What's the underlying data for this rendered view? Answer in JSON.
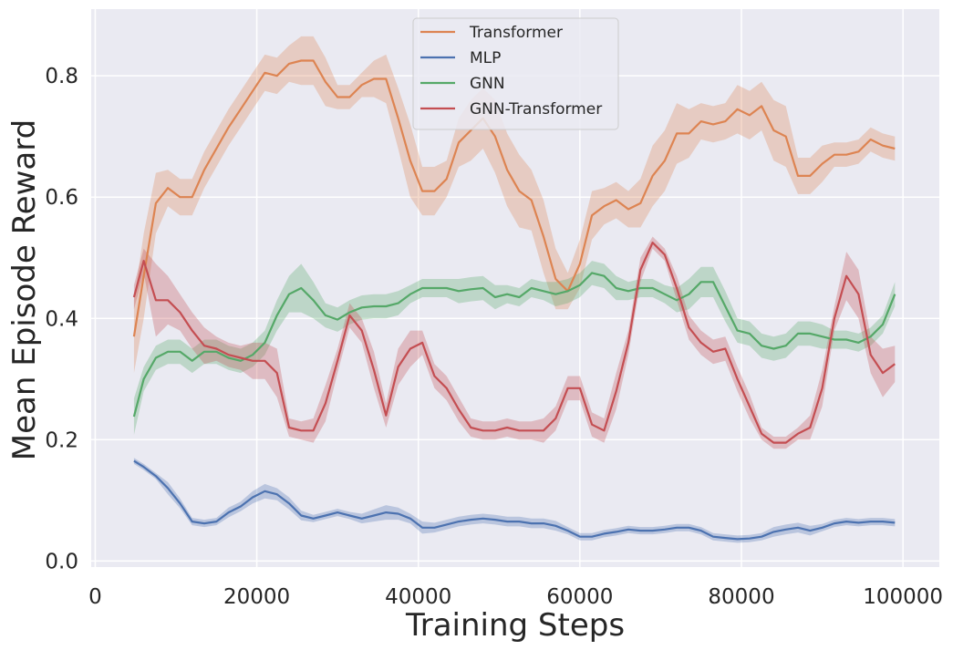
{
  "chart_data": {
    "type": "line",
    "title": "",
    "xlabel": "Training Steps",
    "ylabel": "Mean Episode Reward",
    "xlim": [
      -500,
      104500
    ],
    "ylim": [
      -0.01,
      0.91
    ],
    "xticks": [
      0,
      20000,
      40000,
      60000,
      80000,
      100000
    ],
    "xtick_labels": [
      "0",
      "20000",
      "40000",
      "60000",
      "80000",
      "100000"
    ],
    "yticks": [
      0.0,
      0.2,
      0.4,
      0.6,
      0.8
    ],
    "ytick_labels": [
      "0.0",
      "0.2",
      "0.4",
      "0.6",
      "0.8"
    ],
    "grid": true,
    "background": "#eaeaf2",
    "legend_position": "top-center",
    "shaded_band": "variability range around each series",
    "series": [
      {
        "name": "Transformer",
        "color": "#dd8452",
        "x": [
          4800,
          6000,
          7500,
          9000,
          10500,
          12000,
          13500,
          15000,
          16500,
          18000,
          19500,
          21000,
          22500,
          24000,
          25500,
          27000,
          28500,
          30000,
          31500,
          33000,
          34500,
          36000,
          37500,
          39000,
          40500,
          42000,
          43500,
          45000,
          46500,
          48000,
          49500,
          51000,
          52500,
          54000,
          55500,
          57000,
          58500,
          60000,
          61500,
          63000,
          64500,
          66000,
          67500,
          69000,
          70500,
          72000,
          73500,
          75000,
          76500,
          78000,
          79500,
          81000,
          82500,
          84000,
          85500,
          87000,
          88500,
          90000,
          91500,
          93000,
          94500,
          96000,
          97500,
          99000
        ],
        "y": [
          0.37,
          0.47,
          0.59,
          0.615,
          0.6,
          0.6,
          0.645,
          0.68,
          0.715,
          0.745,
          0.775,
          0.805,
          0.8,
          0.82,
          0.825,
          0.825,
          0.79,
          0.765,
          0.765,
          0.785,
          0.795,
          0.795,
          0.73,
          0.66,
          0.61,
          0.61,
          0.63,
          0.69,
          0.71,
          0.73,
          0.7,
          0.645,
          0.61,
          0.595,
          0.535,
          0.465,
          0.445,
          0.49,
          0.57,
          0.585,
          0.595,
          0.58,
          0.59,
          0.635,
          0.66,
          0.705,
          0.705,
          0.725,
          0.72,
          0.725,
          0.745,
          0.735,
          0.75,
          0.71,
          0.7,
          0.635,
          0.635,
          0.655,
          0.67,
          0.67,
          0.675,
          0.695,
          0.685,
          0.68
        ],
        "band": [
          0.06,
          0.07,
          0.05,
          0.03,
          0.03,
          0.03,
          0.03,
          0.03,
          0.03,
          0.03,
          0.03,
          0.03,
          0.03,
          0.03,
          0.04,
          0.04,
          0.04,
          0.02,
          0.02,
          0.02,
          0.03,
          0.04,
          0.05,
          0.06,
          0.04,
          0.04,
          0.03,
          0.04,
          0.05,
          0.05,
          0.06,
          0.06,
          0.06,
          0.05,
          0.06,
          0.05,
          0.03,
          0.04,
          0.04,
          0.03,
          0.03,
          0.03,
          0.04,
          0.05,
          0.05,
          0.05,
          0.04,
          0.03,
          0.03,
          0.03,
          0.04,
          0.04,
          0.04,
          0.05,
          0.05,
          0.03,
          0.03,
          0.03,
          0.02,
          0.02,
          0.02,
          0.02,
          0.02,
          0.02
        ]
      },
      {
        "name": "MLP",
        "color": "#4c72b0",
        "x": [
          4800,
          6000,
          7500,
          9000,
          10500,
          12000,
          13500,
          15000,
          16500,
          18000,
          19500,
          21000,
          22500,
          24000,
          25500,
          27000,
          28500,
          30000,
          31500,
          33000,
          34500,
          36000,
          37500,
          39000,
          40500,
          42000,
          43500,
          45000,
          46500,
          48000,
          49500,
          51000,
          52500,
          54000,
          55500,
          57000,
          58500,
          60000,
          61500,
          63000,
          64500,
          66000,
          67500,
          69000,
          70500,
          72000,
          73500,
          75000,
          76500,
          78000,
          79500,
          81000,
          82500,
          84000,
          85500,
          87000,
          88500,
          90000,
          91500,
          93000,
          94500,
          96000,
          97500,
          99000
        ],
        "y": [
          0.165,
          0.155,
          0.14,
          0.12,
          0.095,
          0.065,
          0.062,
          0.065,
          0.08,
          0.09,
          0.105,
          0.115,
          0.11,
          0.095,
          0.075,
          0.07,
          0.075,
          0.08,
          0.075,
          0.07,
          0.075,
          0.08,
          0.078,
          0.07,
          0.055,
          0.055,
          0.06,
          0.065,
          0.068,
          0.07,
          0.068,
          0.065,
          0.065,
          0.062,
          0.062,
          0.058,
          0.05,
          0.04,
          0.04,
          0.045,
          0.048,
          0.052,
          0.05,
          0.05,
          0.052,
          0.055,
          0.055,
          0.05,
          0.04,
          0.038,
          0.036,
          0.037,
          0.04,
          0.048,
          0.052,
          0.055,
          0.05,
          0.055,
          0.062,
          0.065,
          0.063,
          0.065,
          0.065,
          0.063
        ],
        "band": [
          0.005,
          0.005,
          0.005,
          0.01,
          0.008,
          0.006,
          0.006,
          0.006,
          0.008,
          0.008,
          0.01,
          0.012,
          0.01,
          0.01,
          0.008,
          0.006,
          0.006,
          0.006,
          0.006,
          0.008,
          0.01,
          0.012,
          0.01,
          0.008,
          0.01,
          0.008,
          0.008,
          0.008,
          0.008,
          0.008,
          0.008,
          0.008,
          0.008,
          0.008,
          0.008,
          0.008,
          0.006,
          0.006,
          0.006,
          0.006,
          0.006,
          0.006,
          0.006,
          0.006,
          0.006,
          0.006,
          0.006,
          0.006,
          0.006,
          0.006,
          0.006,
          0.006,
          0.006,
          0.008,
          0.008,
          0.008,
          0.008,
          0.006,
          0.006,
          0.006,
          0.006,
          0.006,
          0.006,
          0.006
        ]
      },
      {
        "name": "GNN",
        "color": "#55a868",
        "x": [
          4800,
          6000,
          7500,
          9000,
          10500,
          12000,
          13500,
          15000,
          16500,
          18000,
          19500,
          21000,
          22500,
          24000,
          25500,
          27000,
          28500,
          30000,
          31500,
          33000,
          34500,
          36000,
          37500,
          39000,
          40500,
          42000,
          43500,
          45000,
          46500,
          48000,
          49500,
          51000,
          52500,
          54000,
          55500,
          57000,
          58500,
          60000,
          61500,
          63000,
          64500,
          66000,
          67500,
          69000,
          70500,
          72000,
          73500,
          75000,
          76500,
          78000,
          79500,
          81000,
          82500,
          84000,
          85500,
          87000,
          88500,
          90000,
          91500,
          93000,
          94500,
          96000,
          97500,
          99000
        ],
        "y": [
          0.238,
          0.3,
          0.335,
          0.345,
          0.345,
          0.33,
          0.345,
          0.345,
          0.335,
          0.33,
          0.34,
          0.36,
          0.405,
          0.44,
          0.45,
          0.43,
          0.405,
          0.398,
          0.41,
          0.418,
          0.42,
          0.42,
          0.425,
          0.44,
          0.45,
          0.45,
          0.45,
          0.445,
          0.448,
          0.45,
          0.435,
          0.44,
          0.435,
          0.45,
          0.445,
          0.44,
          0.445,
          0.455,
          0.475,
          0.47,
          0.45,
          0.445,
          0.45,
          0.45,
          0.44,
          0.43,
          0.44,
          0.46,
          0.46,
          0.42,
          0.38,
          0.375,
          0.355,
          0.35,
          0.355,
          0.375,
          0.375,
          0.37,
          0.365,
          0.365,
          0.36,
          0.37,
          0.39,
          0.44
        ],
        "band": [
          0.03,
          0.02,
          0.02,
          0.02,
          0.02,
          0.02,
          0.02,
          0.02,
          0.02,
          0.02,
          0.02,
          0.02,
          0.025,
          0.03,
          0.04,
          0.03,
          0.02,
          0.02,
          0.02,
          0.02,
          0.02,
          0.02,
          0.02,
          0.015,
          0.015,
          0.015,
          0.015,
          0.02,
          0.02,
          0.02,
          0.02,
          0.015,
          0.015,
          0.015,
          0.015,
          0.02,
          0.02,
          0.02,
          0.02,
          0.02,
          0.02,
          0.015,
          0.015,
          0.015,
          0.015,
          0.02,
          0.025,
          0.025,
          0.025,
          0.025,
          0.02,
          0.02,
          0.02,
          0.02,
          0.02,
          0.02,
          0.02,
          0.02,
          0.015,
          0.015,
          0.015,
          0.015,
          0.015,
          0.02
        ]
      },
      {
        "name": "GNN-Transformer",
        "color": "#c44e52",
        "x": [
          4800,
          6000,
          7500,
          9000,
          10500,
          12000,
          13500,
          15000,
          16500,
          18000,
          19500,
          21000,
          22500,
          24000,
          25500,
          27000,
          28500,
          30000,
          31500,
          33000,
          34500,
          36000,
          37500,
          39000,
          40500,
          42000,
          43500,
          45000,
          46500,
          48000,
          49500,
          51000,
          52500,
          54000,
          55500,
          57000,
          58500,
          60000,
          61500,
          63000,
          64500,
          66000,
          67500,
          69000,
          70500,
          72000,
          73500,
          75000,
          76500,
          78000,
          79500,
          81000,
          82500,
          84000,
          85500,
          87000,
          88500,
          90000,
          91500,
          93000,
          94500,
          96000,
          97500,
          99000
        ],
        "y": [
          0.435,
          0.495,
          0.43,
          0.43,
          0.41,
          0.38,
          0.355,
          0.35,
          0.34,
          0.335,
          0.33,
          0.33,
          0.31,
          0.22,
          0.215,
          0.215,
          0.26,
          0.33,
          0.405,
          0.38,
          0.315,
          0.24,
          0.32,
          0.35,
          0.36,
          0.305,
          0.285,
          0.25,
          0.22,
          0.215,
          0.215,
          0.22,
          0.215,
          0.215,
          0.215,
          0.235,
          0.285,
          0.285,
          0.225,
          0.215,
          0.28,
          0.36,
          0.48,
          0.525,
          0.505,
          0.45,
          0.385,
          0.36,
          0.345,
          0.35,
          0.3,
          0.255,
          0.21,
          0.195,
          0.195,
          0.21,
          0.22,
          0.285,
          0.4,
          0.47,
          0.44,
          0.34,
          0.31,
          0.325
        ],
        "band": [
          0.02,
          0.02,
          0.06,
          0.04,
          0.03,
          0.03,
          0.03,
          0.02,
          0.02,
          0.02,
          0.03,
          0.03,
          0.04,
          0.015,
          0.015,
          0.02,
          0.03,
          0.02,
          0.02,
          0.02,
          0.03,
          0.02,
          0.03,
          0.03,
          0.02,
          0.02,
          0.02,
          0.02,
          0.015,
          0.015,
          0.015,
          0.015,
          0.015,
          0.015,
          0.02,
          0.02,
          0.02,
          0.02,
          0.02,
          0.02,
          0.03,
          0.02,
          0.02,
          0.01,
          0.01,
          0.02,
          0.02,
          0.02,
          0.02,
          0.02,
          0.02,
          0.02,
          0.01,
          0.01,
          0.01,
          0.01,
          0.02,
          0.03,
          0.02,
          0.04,
          0.04,
          0.03,
          0.04,
          0.03
        ]
      }
    ]
  }
}
